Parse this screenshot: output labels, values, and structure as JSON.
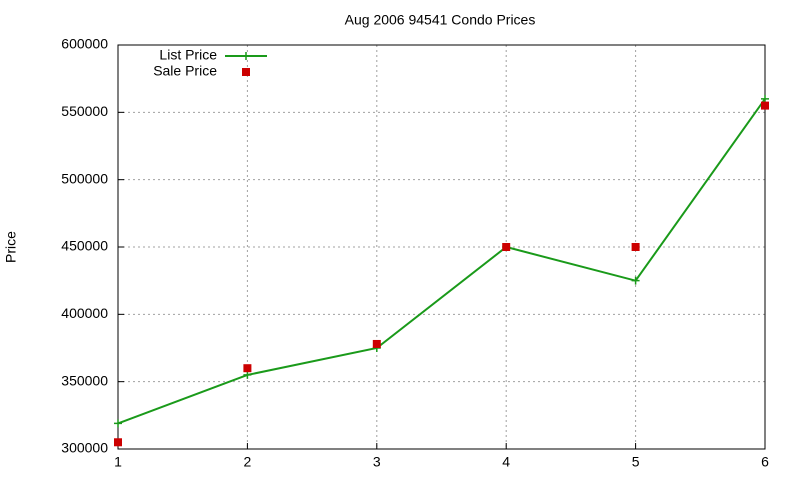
{
  "chart_data": {
    "type": "line",
    "title": "Aug 2006 94541 Condo Prices",
    "y_label": "Price",
    "x": [
      1,
      2,
      3,
      4,
      5,
      6
    ],
    "series": [
      {
        "name": "List Price",
        "color": "#1a9a1a",
        "line": true,
        "marker": "plus",
        "values": [
          319000,
          355000,
          375000,
          450000,
          425000,
          560000
        ]
      },
      {
        "name": "Sale Price",
        "color": "#cc0000",
        "line": false,
        "marker": "square",
        "values": [
          305000,
          360000,
          378000,
          450000,
          450000,
          555000
        ]
      }
    ],
    "xlim": [
      1,
      6
    ],
    "xticks": [
      1,
      2,
      3,
      4,
      5,
      6
    ],
    "ylim": [
      300000,
      600000
    ],
    "yticks": [
      300000,
      350000,
      400000,
      450000,
      500000,
      550000,
      600000
    ],
    "grid": true,
    "legend": "top-left"
  }
}
